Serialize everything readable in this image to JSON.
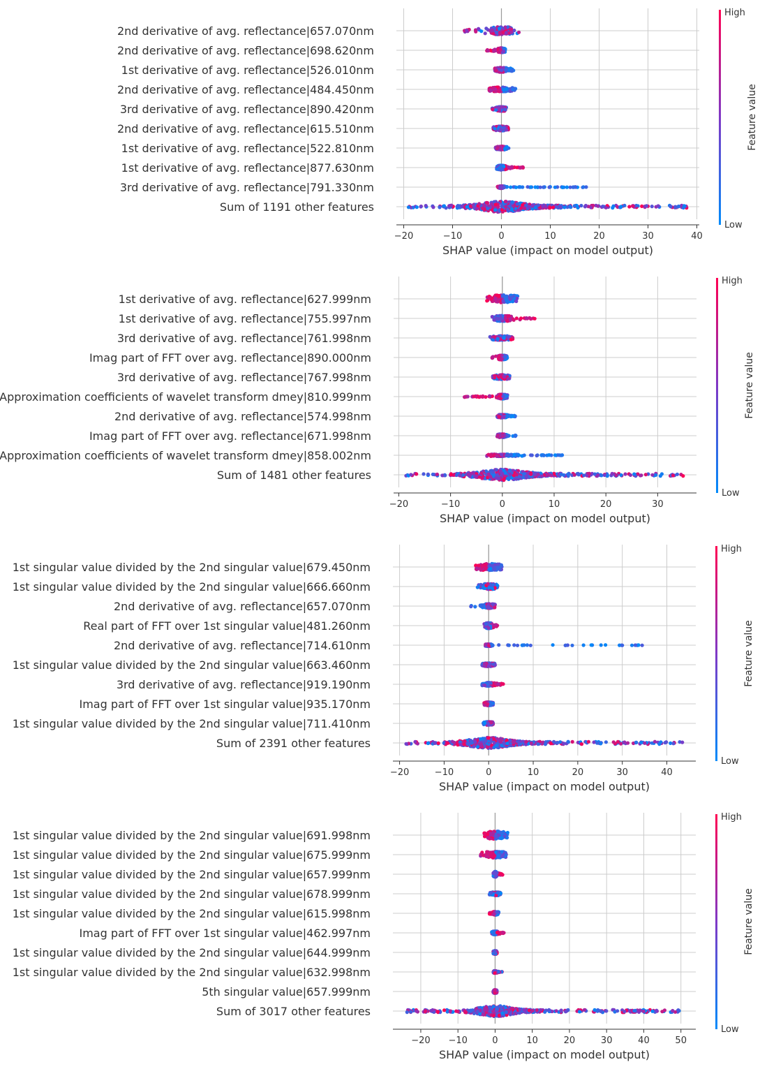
{
  "chart_data": [
    {
      "type": "scatter",
      "subtype": "shap-beeswarm",
      "xlabel": "SHAP value (impact on model output)",
      "xlim": [
        -21.5,
        40.5
      ],
      "xticks": [
        -20,
        -10,
        0,
        10,
        20,
        30,
        40
      ],
      "xtick_labels": [
        "−20",
        "−10",
        "0",
        "10",
        "20",
        "30",
        "40"
      ],
      "colorbar": {
        "label": "Feature value",
        "high": "High",
        "low": "Low"
      },
      "features": [
        {
          "name": "2nd derivative of avg. reflectance|657.070nm",
          "range": [
            -8.5,
            4.2
          ],
          "spread": 0.35,
          "tint": "mix"
        },
        {
          "name": "2nd derivative of avg. reflectance|698.620nm",
          "range": [
            -3.0,
            0.8
          ],
          "spread": 0.2,
          "tint": "high-left"
        },
        {
          "name": "1st derivative of avg. reflectance|526.010nm",
          "range": [
            -1.5,
            2.5
          ],
          "spread": 0.2,
          "tint": "low-right"
        },
        {
          "name": "2nd derivative of avg. reflectance|484.450nm",
          "range": [
            -2.5,
            3.0
          ],
          "spread": 0.2,
          "tint": "high-left"
        },
        {
          "name": "3rd derivative of avg. reflectance|890.420nm",
          "range": [
            -2.0,
            1.0
          ],
          "spread": 0.2,
          "tint": "mix"
        },
        {
          "name": "2nd derivative of avg. reflectance|615.510nm",
          "range": [
            -1.8,
            1.5
          ],
          "spread": 0.2,
          "tint": "mix"
        },
        {
          "name": "1st derivative of avg. reflectance|522.810nm",
          "range": [
            -1.2,
            1.6
          ],
          "spread": 0.15,
          "tint": "low-right"
        },
        {
          "name": "1st derivative of avg. reflectance|877.630nm",
          "range": [
            -1.0,
            4.5
          ],
          "spread": 0.2,
          "tint": "high-right"
        },
        {
          "name": "3rd derivative of avg. reflectance|791.330nm",
          "range": [
            -0.8,
            17.5
          ],
          "spread": 0.1,
          "tint": "low-right"
        },
        {
          "name": "Sum of 1191 other features",
          "range": [
            -19.0,
            38.0
          ],
          "spread": 0.5,
          "tint": "wide"
        }
      ]
    },
    {
      "type": "scatter",
      "subtype": "shap-beeswarm",
      "xlabel": "SHAP value (impact on model output)",
      "xlim": [
        -21.0,
        37.5
      ],
      "xticks": [
        -20,
        -10,
        0,
        10,
        20,
        30
      ],
      "xtick_labels": [
        "−20",
        "−10",
        "0",
        "10",
        "20",
        "30"
      ],
      "colorbar": {
        "label": "Feature value",
        "high": "High",
        "low": "Low"
      },
      "features": [
        {
          "name": "1st derivative of avg. reflectance|627.999nm",
          "range": [
            -3.0,
            3.0
          ],
          "spread": 0.35,
          "tint": "high-left"
        },
        {
          "name": "1st derivative of avg. reflectance|755.997nm",
          "range": [
            -2.0,
            7.5
          ],
          "spread": 0.25,
          "tint": "high-right"
        },
        {
          "name": "3rd derivative of avg. reflectance|761.998nm",
          "range": [
            -2.5,
            2.0
          ],
          "spread": 0.2,
          "tint": "mix"
        },
        {
          "name": "Imag part of FFT over avg. reflectance|890.000nm",
          "range": [
            -2.0,
            1.0
          ],
          "spread": 0.2,
          "tint": "high-left"
        },
        {
          "name": "3rd derivative of avg. reflectance|767.998nm",
          "range": [
            -2.0,
            1.5
          ],
          "spread": 0.2,
          "tint": "mix"
        },
        {
          "name": "Approximation coefficients of wavelet transform dmey|810.999nm",
          "range": [
            -7.5,
            1.0
          ],
          "spread": 0.2,
          "tint": "high-left"
        },
        {
          "name": "2nd derivative of avg. reflectance|574.998nm",
          "range": [
            -1.0,
            2.5
          ],
          "spread": 0.15,
          "tint": "low-right"
        },
        {
          "name": "Imag part of FFT over avg. reflectance|671.998nm",
          "range": [
            -1.0,
            3.0
          ],
          "spread": 0.15,
          "tint": "low-right"
        },
        {
          "name": "Approximation coefficients of wavelet transform dmey|858.002nm",
          "range": [
            -3.0,
            12.5
          ],
          "spread": 0.1,
          "tint": "low-right"
        },
        {
          "name": "Sum of 1481 other features",
          "range": [
            -19.0,
            35.0
          ],
          "spread": 0.5,
          "tint": "wide"
        }
      ]
    },
    {
      "type": "scatter",
      "subtype": "shap-beeswarm",
      "xlabel": "SHAP value (impact on model output)",
      "xlim": [
        -21.5,
        46.5
      ],
      "xticks": [
        -20,
        -10,
        0,
        10,
        20,
        30,
        40
      ],
      "xtick_labels": [
        "−20",
        "−10",
        "0",
        "10",
        "20",
        "30",
        "40"
      ],
      "colorbar": {
        "label": "Feature value",
        "high": "High",
        "low": "Low"
      },
      "features": [
        {
          "name": "1st singular value divided by the 2nd singular value|679.450nm",
          "range": [
            -3.0,
            3.0
          ],
          "spread": 0.3,
          "tint": "high-left"
        },
        {
          "name": "1st singular value divided by the 2nd singular value|666.660nm",
          "range": [
            -2.5,
            2.0
          ],
          "spread": 0.25,
          "tint": "mix"
        },
        {
          "name": "2nd derivative of avg. reflectance|657.070nm",
          "range": [
            -4.0,
            1.5
          ],
          "spread": 0.2,
          "tint": "low-left"
        },
        {
          "name": "Real part of FFT over 1st singular value|481.260nm",
          "range": [
            -1.0,
            2.5
          ],
          "spread": 0.25,
          "tint": "high-right"
        },
        {
          "name": "2nd derivative of avg. reflectance|714.610nm",
          "range": [
            -0.8,
            34.5
          ],
          "spread": 0.1,
          "tint": "low-right"
        },
        {
          "name": "1st singular value divided by the 2nd singular value|663.460nm",
          "range": [
            -1.5,
            1.5
          ],
          "spread": 0.15,
          "tint": "mix"
        },
        {
          "name": "3rd derivative of avg. reflectance|919.190nm",
          "range": [
            -1.5,
            3.5
          ],
          "spread": 0.15,
          "tint": "high-right"
        },
        {
          "name": "Imag part of FFT over 1st singular value|935.170nm",
          "range": [
            -1.0,
            1.0
          ],
          "spread": 0.15,
          "tint": "high-left"
        },
        {
          "name": "1st singular value divided by the 2nd singular value|711.410nm",
          "range": [
            -1.2,
            1.0
          ],
          "spread": 0.15,
          "tint": "low-left"
        },
        {
          "name": "Sum of 2391 other features",
          "range": [
            -19.0,
            43.5
          ],
          "spread": 0.5,
          "tint": "wide"
        }
      ]
    },
    {
      "type": "scatter",
      "subtype": "shap-beeswarm",
      "xlabel": "SHAP value (impact on model output)",
      "xlim": [
        -27.5,
        54.0
      ],
      "xticks": [
        -20,
        -10,
        0,
        10,
        20,
        30,
        40,
        50
      ],
      "xtick_labels": [
        "−20",
        "−10",
        "0",
        "10",
        "20",
        "30",
        "40",
        "50"
      ],
      "colorbar": {
        "label": "Feature value",
        "high": "High",
        "low": "Low"
      },
      "features": [
        {
          "name": "1st singular value divided by the 2nd singular value|691.998nm",
          "range": [
            -3.0,
            3.5
          ],
          "spread": 0.35,
          "tint": "high-left"
        },
        {
          "name": "1st singular value divided by the 2nd singular value|675.999nm",
          "range": [
            -4.0,
            3.0
          ],
          "spread": 0.3,
          "tint": "high-left"
        },
        {
          "name": "1st singular value divided by the 2nd singular value|657.999nm",
          "range": [
            -0.5,
            2.0
          ],
          "spread": 0.25,
          "tint": "high-right"
        },
        {
          "name": "1st singular value divided by the 2nd singular value|678.999nm",
          "range": [
            -1.5,
            1.5
          ],
          "spread": 0.15,
          "tint": "mix"
        },
        {
          "name": "1st singular value divided by the 2nd singular value|615.998nm",
          "range": [
            -1.5,
            1.0
          ],
          "spread": 0.15,
          "tint": "high-left"
        },
        {
          "name": "Imag part of FFT over 1st singular value|462.997nm",
          "range": [
            -1.0,
            3.0
          ],
          "spread": 0.15,
          "tint": "high-right"
        },
        {
          "name": "1st singular value divided by the 2nd singular value|644.999nm",
          "range": [
            -0.5,
            0.5
          ],
          "spread": 0.15,
          "tint": "mix"
        },
        {
          "name": "1st singular value divided by the 2nd singular value|632.998nm",
          "range": [
            -0.5,
            2.0
          ],
          "spread": 0.1,
          "tint": "mix"
        },
        {
          "name": "5th singular value|657.999nm",
          "range": [
            -0.5,
            0.5
          ],
          "spread": 0.15,
          "tint": "low-left"
        },
        {
          "name": "Sum of 3017 other features",
          "range": [
            -24.5,
            50.0
          ],
          "spread": 0.5,
          "tint": "wide"
        }
      ]
    }
  ],
  "colors": {
    "high": "#ff0052",
    "mid": "#7f38c6",
    "low": "#008bfa",
    "grid": "#cccccc",
    "text": "#333333"
  }
}
